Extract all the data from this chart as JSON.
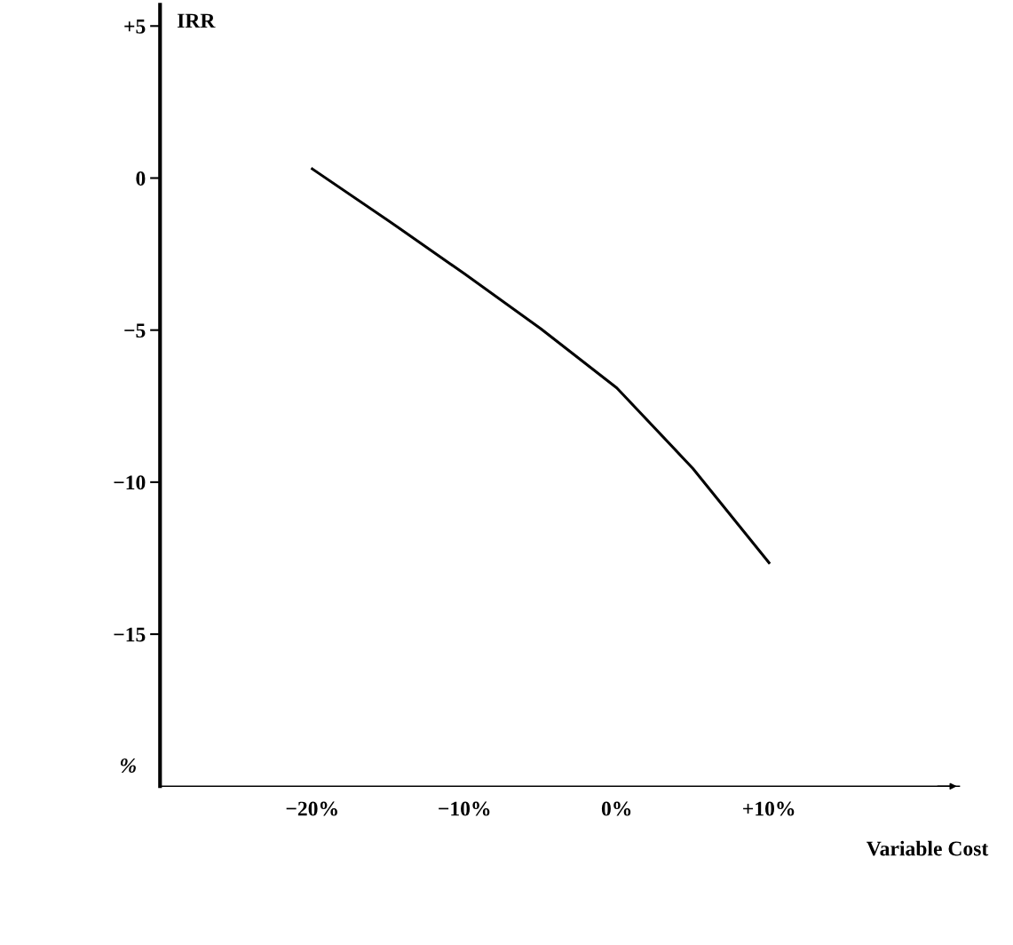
{
  "chart_data": {
    "type": "line",
    "xlabel": "Variable Cost",
    "ylabel": "IRR",
    "annotations": [
      "%"
    ],
    "x": [
      -20,
      -15,
      -10,
      -5,
      0,
      5,
      10
    ],
    "series": [
      {
        "color": "#000000",
        "values": [
          0.3,
          -1.4,
          -3.15,
          -4.95,
          -6.9,
          -9.55,
          -12.65
        ]
      }
    ],
    "xlim": [
      -30,
      22.5
    ],
    "ylim": [
      -20,
      5.7
    ],
    "xticks": [
      {
        "value": -20,
        "label": "−20%"
      },
      {
        "value": -10,
        "label": "−10%"
      },
      {
        "value": 0,
        "label": "0%"
      },
      {
        "value": 10,
        "label": "+10%"
      }
    ],
    "yticks": [
      {
        "value": 5,
        "label": "+5"
      },
      0,
      {
        "value": -5,
        "label": "−5"
      },
      {
        "value": -10,
        "label": "−10"
      },
      {
        "value": -15,
        "label": "−15"
      }
    ],
    "grid": false,
    "legend": false,
    "marker": "none",
    "line_style": "solid"
  }
}
